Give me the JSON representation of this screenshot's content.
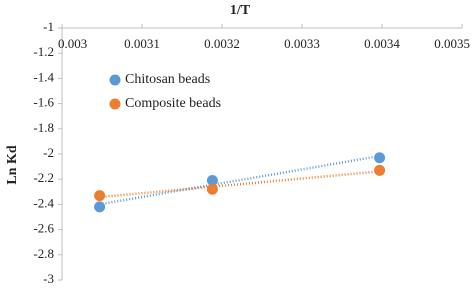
{
  "chart_data": {
    "type": "scatter",
    "title": "1/T",
    "y_label": "Ln Kd",
    "x_axis_position": "top",
    "grid": false,
    "trendline": true,
    "legend_position": "upper left",
    "xlim": [
      0.003,
      0.0035
    ],
    "xticks": [
      0.003,
      0.0031,
      0.0032,
      0.0033,
      0.0034,
      0.0035
    ],
    "ylim": [
      -3,
      -1
    ],
    "yticks": [
      -1,
      -1.2,
      -1.4,
      -1.6,
      -1.8,
      -2,
      -2.2,
      -2.4,
      -2.6,
      -2.8,
      -3
    ],
    "x": [
      0.003047,
      0.003188,
      0.003397
    ],
    "series": [
      {
        "name": "Chitosan beads",
        "color": "#5b9bd5",
        "values": [
          -2.42,
          -2.21,
          -2.03
        ]
      },
      {
        "name": "Composite beads",
        "color": "#ed7d31",
        "values": [
          -2.33,
          -2.28,
          -2.13
        ]
      }
    ]
  }
}
